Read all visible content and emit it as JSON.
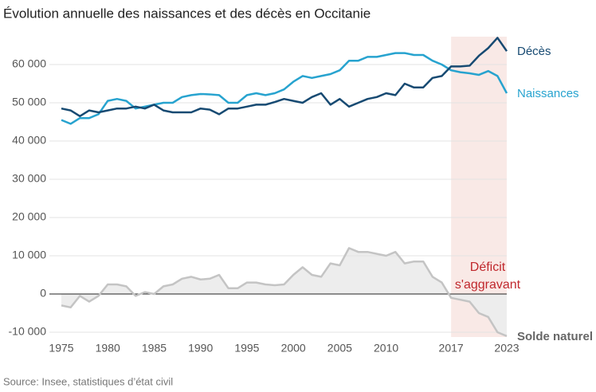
{
  "chart_data": {
    "type": "line",
    "title": "Évolution annuelle des naissances et des décès en Occitanie",
    "source": "Source: Insee, statistiques d’état civil",
    "x": [
      1975,
      1976,
      1977,
      1978,
      1979,
      1980,
      1981,
      1982,
      1983,
      1984,
      1985,
      1986,
      1987,
      1988,
      1989,
      1990,
      1991,
      1992,
      1993,
      1994,
      1995,
      1996,
      1997,
      1998,
      1999,
      2000,
      2001,
      2002,
      2003,
      2004,
      2005,
      2006,
      2007,
      2008,
      2009,
      2010,
      2011,
      2012,
      2013,
      2014,
      2015,
      2016,
      2017,
      2018,
      2019,
      2020,
      2021,
      2022,
      2023
    ],
    "xlim": [
      1975,
      2023
    ],
    "xticks": [
      1975,
      1980,
      1985,
      1990,
      1995,
      2000,
      2005,
      2010,
      2017,
      2023
    ],
    "ylim": [
      -10000,
      65000
    ],
    "yticks": [
      {
        "value": -10000,
        "label": "-10 000"
      },
      0,
      {
        "value": 10000,
        "label": "10 000"
      },
      {
        "value": 20000,
        "label": "20 000"
      },
      {
        "value": 30000,
        "label": "30 000"
      },
      {
        "value": 40000,
        "label": "40 000"
      },
      {
        "value": 50000,
        "label": "50 000"
      },
      {
        "value": 60000,
        "label": "60 000"
      }
    ],
    "grid": true,
    "highlight": {
      "from": 2017,
      "to": 2023,
      "label": [
        "Déficit",
        "s'aggravant"
      ],
      "color": "#f9e9e6",
      "label_color": "#c0282d"
    },
    "series": [
      {
        "name": "Décès",
        "color": "#174a72",
        "values": [
          48500,
          48000,
          46500,
          48000,
          47500,
          48000,
          48500,
          48500,
          49000,
          48500,
          49500,
          48000,
          47500,
          47500,
          47500,
          48500,
          48200,
          47000,
          48500,
          48500,
          49000,
          49500,
          49500,
          50200,
          51000,
          50500,
          50000,
          51500,
          52500,
          49500,
          51000,
          49000,
          50000,
          51000,
          51500,
          52500,
          52000,
          55000,
          54000,
          54000,
          56500,
          57000,
          59500,
          59500,
          59700,
          62300,
          64300,
          67000,
          63500
        ]
      },
      {
        "name": "Naissances",
        "color": "#27a3cf",
        "values": [
          45500,
          44500,
          46000,
          46000,
          47000,
          50500,
          51000,
          50500,
          48500,
          49000,
          49500,
          50000,
          50000,
          51500,
          52000,
          52300,
          52200,
          52000,
          50000,
          50000,
          52000,
          52500,
          52000,
          52500,
          53500,
          55500,
          57000,
          56500,
          57000,
          57500,
          58500,
          61000,
          61000,
          62000,
          62000,
          62500,
          63000,
          63000,
          62500,
          62500,
          61000,
          60000,
          58500,
          58000,
          57700,
          57300,
          58300,
          57000,
          52500
        ]
      },
      {
        "name": "Solde naturel",
        "color": "#c4c4c4",
        "area_color": "#ededed",
        "label_color": "#666666",
        "values": [
          -3000,
          -3500,
          -500,
          -2000,
          -500,
          2500,
          2500,
          2000,
          -500,
          500,
          0,
          2000,
          2500,
          4000,
          4500,
          3800,
          4000,
          5000,
          1500,
          1500,
          3000,
          3000,
          2500,
          2300,
          2500,
          5000,
          7000,
          5000,
          4500,
          8000,
          7500,
          12000,
          11000,
          11000,
          10500,
          10000,
          11000,
          8000,
          8500,
          8500,
          4500,
          3000,
          -1000,
          -1500,
          -2000,
          -5000,
          -6000,
          -10000,
          -11000
        ]
      }
    ]
  }
}
